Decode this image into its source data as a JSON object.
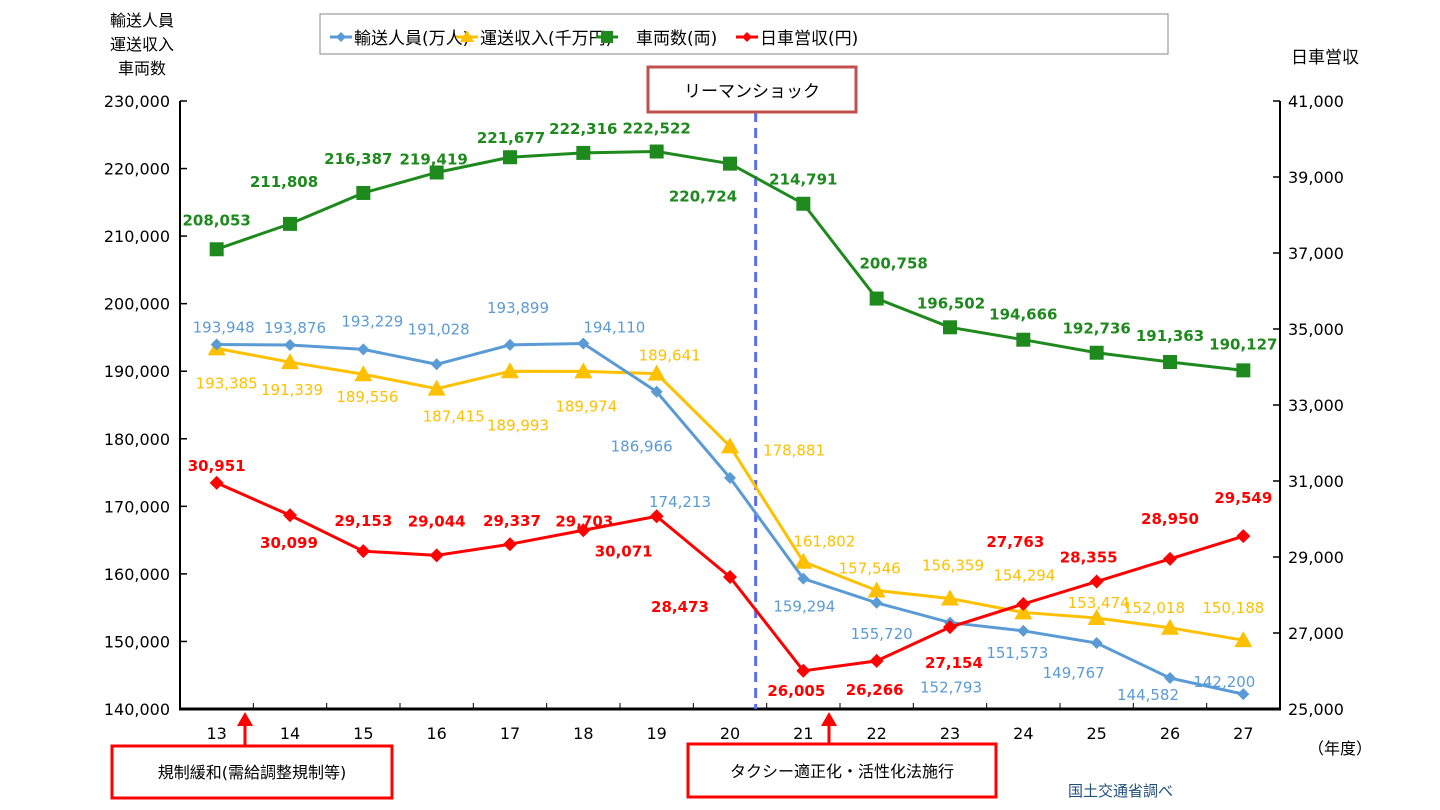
{
  "chart_data": {
    "type": "line",
    "categories": [
      "13",
      "14",
      "15",
      "16",
      "17",
      "18",
      "19",
      "20",
      "21",
      "22",
      "23",
      "24",
      "25",
      "26",
      "27"
    ],
    "xlabel": "（年度）",
    "ylabel_left": [
      "輸送人員",
      "運送収入",
      "車両数"
    ],
    "ylabel_right": "日車営収",
    "ylim_left": [
      140000,
      230000
    ],
    "ylim_right": [
      25000,
      41000
    ],
    "yticks_left": [
      "140,000",
      "150,000",
      "160,000",
      "170,000",
      "180,000",
      "190,000",
      "200,000",
      "210,000",
      "220,000",
      "230,000"
    ],
    "yticks_right": [
      "25,000",
      "27,000",
      "29,000",
      "31,000",
      "33,000",
      "35,000",
      "37,000",
      "39,000",
      "41,000"
    ],
    "grid": false,
    "legend_placement": "top",
    "series": [
      {
        "name": "輸送人員(万人)",
        "axis": "left",
        "color": "#5b9bd5",
        "marker": "diamond",
        "values": [
          193948,
          193876,
          193229,
          191028,
          193899,
          194110,
          186966,
          174213,
          159294,
          155720,
          152793,
          151573,
          149767,
          144582,
          142200
        ],
        "labels": [
          "193,948",
          "193,876",
          "193,229",
          "191,028",
          "193,899",
          "194,110",
          "186,966",
          "174,213",
          "159,294",
          "155,720",
          "152,793",
          "151,573",
          "149,767",
          "144,582",
          "142,200"
        ]
      },
      {
        "name": "運送収入(千万円)",
        "axis": "left",
        "color": "#ffc000",
        "marker": "triangle",
        "values": [
          193385,
          191339,
          189556,
          187415,
          189993,
          189974,
          189641,
          178881,
          161802,
          157546,
          156359,
          154294,
          153474,
          152018,
          150188
        ],
        "labels": [
          "193,385",
          "191,339",
          "189,556",
          "187,415",
          "189,993",
          "189,974",
          "189,641",
          "178,881",
          "161,802",
          "157,546",
          "156,359",
          "154,294",
          "153,474",
          "152,018",
          "150,188"
        ]
      },
      {
        "name": "車両数(両)",
        "axis": "left",
        "color": "#1e8a1e",
        "marker": "square",
        "values": [
          208053,
          211808,
          216387,
          219419,
          221677,
          222316,
          222522,
          220724,
          214791,
          200758,
          196502,
          194666,
          192736,
          191363,
          190127
        ],
        "labels": [
          "208,053",
          "211,808",
          "216,387",
          "219,419",
          "221,677",
          "222,316",
          "222,522",
          "220,724",
          "214,791",
          "200,758",
          "196,502",
          "194,666",
          "192,736",
          "191,363",
          "190,127"
        ]
      },
      {
        "name": "日車営収(円)",
        "axis": "right",
        "color": "#ff0000",
        "marker": "diamond",
        "values": [
          30951,
          30099,
          29153,
          29044,
          29337,
          29703,
          30071,
          28473,
          26005,
          26266,
          27154,
          27763,
          28355,
          28950,
          29549
        ],
        "labels": [
          "30,951",
          "30,099",
          "29,153",
          "29,044",
          "29,337",
          "29,703",
          "30,071",
          "28,473",
          "26,005",
          "26,266",
          "27,154",
          "27,763",
          "28,355",
          "28,950",
          "29,549"
        ]
      }
    ],
    "annotations": {
      "lehman": {
        "text": "リーマンショック",
        "between": [
          "20",
          "21"
        ],
        "line_color": "#5b6cf0",
        "box_color": "#c0504d"
      },
      "deregulation": {
        "text": "規制緩和(需給調整規制等)",
        "at": "13-14",
        "color": "#ff0000"
      },
      "taxi_law": {
        "text": "タクシー適正化・活性化法施行",
        "at": "21-22",
        "color": "#ff0000"
      }
    },
    "source": "国土交通省調べ"
  }
}
